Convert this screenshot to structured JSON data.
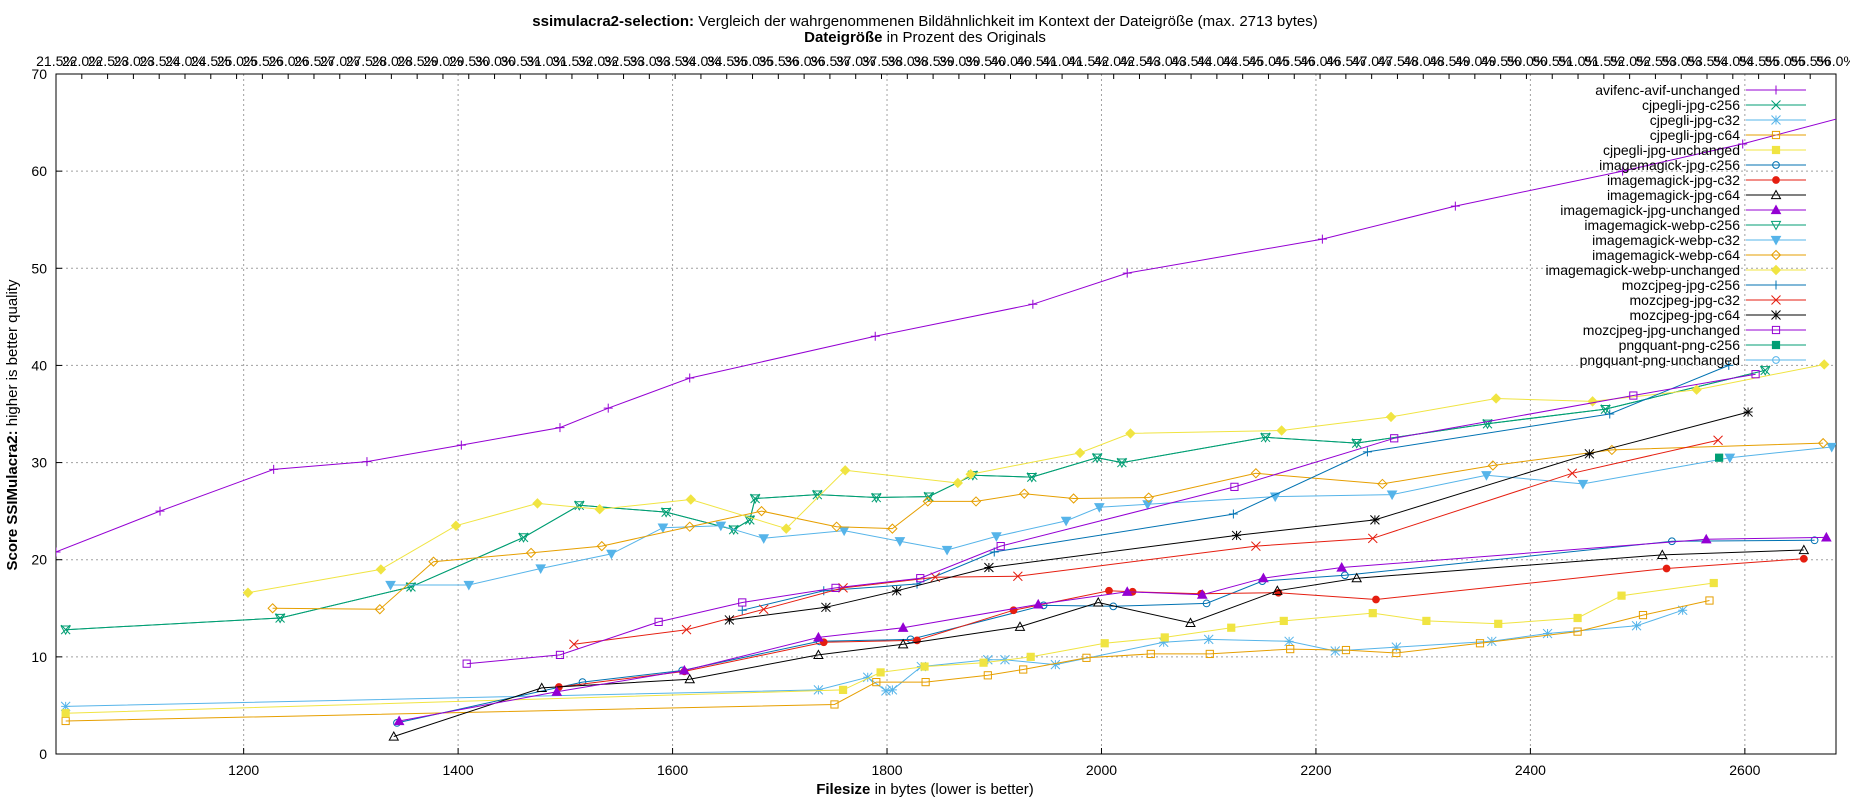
{
  "chart_data": {
    "type": "line",
    "title_bold": "ssimulacra2-selection:",
    "title_rest": " Vergleich der wahrgenommenen Bildähnlichkeit im Kontext der Dateigröße (max. 2713 bytes)",
    "subtitle_bold": "Dateigröße",
    "subtitle_rest": " in Prozent des Originals",
    "xlabel_bold": "Filesize",
    "xlabel_rest": " in bytes (lower is better)",
    "ylabel_bold": "Score SSIMulacra2:",
    "ylabel_rest": " higher is better quality",
    "xlim": [
      1025,
      2685
    ],
    "ylim": [
      0,
      70
    ],
    "xticks": [
      1200,
      1400,
      1600,
      1800,
      2000,
      2200,
      2400,
      2600
    ],
    "yticks": [
      0,
      10,
      20,
      30,
      40,
      50,
      60,
      70
    ],
    "x2ticks": [
      "21.5%",
      "22.0%",
      "22.5%",
      "23.0%",
      "23.5%",
      "24.0%",
      "24.5%",
      "25.0%",
      "25.5%",
      "26.0%",
      "26.5%",
      "27.0%",
      "27.5%",
      "28.0%",
      "28.5%",
      "29.0%",
      "29.5%",
      "30.0%",
      "30.5%",
      "31.0%",
      "31.5%",
      "32.0%",
      "32.5%",
      "33.0%",
      "33.5%",
      "34.0%",
      "34.5%",
      "35.0%",
      "35.5%",
      "36.0%",
      "36.5%",
      "37.0%",
      "37.5%",
      "38.0%",
      "38.5%",
      "39.0%",
      "39.5%",
      "40.0%",
      "40.5%",
      "41.0%",
      "41.5%",
      "42.0%",
      "42.5%",
      "43.0%",
      "43.5%",
      "44.0%",
      "44.5%",
      "45.0%",
      "45.5%",
      "46.0%",
      "46.5%",
      "47.0%",
      "47.5%",
      "48.0%",
      "48.5%",
      "49.0%",
      "49.5%",
      "50.0%",
      "50.5%",
      "51.0%",
      "51.5%",
      "52.0%",
      "52.5%",
      "53.0%",
      "53.5%",
      "54.0%",
      "54.5%",
      "55.0%",
      "55.5%",
      "56.0%"
    ],
    "grid": true,
    "legend_position": "top-right",
    "series": [
      {
        "name": "avifenc-avif-unchanged",
        "color": "#9400d3",
        "marker": "plus",
        "points": [
          [
            1025,
            20.8
          ],
          [
            1122,
            25.0
          ],
          [
            1228,
            29.3
          ],
          [
            1315,
            30.1
          ],
          [
            1403,
            31.8
          ],
          [
            1495,
            33.6
          ],
          [
            1540,
            35.6
          ],
          [
            1616,
            38.7
          ],
          [
            1789,
            43.0
          ],
          [
            1936,
            46.3
          ],
          [
            2024,
            49.5
          ],
          [
            2206,
            53.0
          ],
          [
            2330,
            56.4
          ],
          [
            2486,
            60.0
          ],
          [
            2598,
            62.8
          ],
          [
            2700,
            65.8
          ]
        ]
      },
      {
        "name": "cjpegli-jpg-c256",
        "color": "#009e73",
        "marker": "x",
        "points": [
          [
            1034,
            12.8
          ],
          [
            1234,
            14.0
          ],
          [
            1356,
            17.2
          ],
          [
            1461,
            22.3
          ],
          [
            1513,
            25.6
          ],
          [
            1594,
            24.9
          ],
          [
            1657,
            23.1
          ],
          [
            1672,
            24.1
          ],
          [
            1677,
            26.3
          ],
          [
            1735,
            26.7
          ],
          [
            1790,
            26.4
          ],
          [
            1839,
            26.5
          ],
          [
            1880,
            28.7
          ],
          [
            1935,
            28.5
          ],
          [
            1996,
            30.5
          ],
          [
            2019,
            30.0
          ],
          [
            2153,
            32.6
          ],
          [
            2238,
            32.0
          ],
          [
            2360,
            34.0
          ],
          [
            2470,
            35.5
          ],
          [
            2619,
            39.5
          ]
        ]
      },
      {
        "name": "cjpegli-jpg-c32",
        "color": "#56b4e9",
        "marker": "star",
        "points": [
          [
            1034,
            4.9
          ],
          [
            1736,
            6.6
          ],
          [
            1782,
            7.9
          ],
          [
            1799,
            6.5
          ],
          [
            1805,
            6.6
          ],
          [
            1832,
            9.0
          ],
          [
            1894,
            9.7
          ],
          [
            1910,
            9.7
          ],
          [
            1957,
            9.2
          ],
          [
            2058,
            11.5
          ],
          [
            2100,
            11.8
          ],
          [
            2175,
            11.6
          ],
          [
            2218,
            10.6
          ],
          [
            2275,
            11.0
          ],
          [
            2364,
            11.6
          ],
          [
            2416,
            12.4
          ],
          [
            2499,
            13.2
          ],
          [
            2542,
            14.8
          ]
        ]
      },
      {
        "name": "cjpegli-jpg-c64",
        "color": "#e69f00",
        "marker": "square",
        "points": [
          [
            1034,
            3.4
          ],
          [
            1751,
            5.1
          ],
          [
            1790,
            7.4
          ],
          [
            1836,
            7.4
          ],
          [
            1894,
            8.1
          ],
          [
            1927,
            8.7
          ],
          [
            1986,
            9.9
          ],
          [
            2046,
            10.3
          ],
          [
            2101,
            10.3
          ],
          [
            2176,
            10.8
          ],
          [
            2228,
            10.7
          ],
          [
            2275,
            10.4
          ],
          [
            2353,
            11.4
          ],
          [
            2444,
            12.6
          ],
          [
            2505,
            14.3
          ],
          [
            2567,
            15.8
          ]
        ]
      },
      {
        "name": "cjpegli-jpg-unchanged",
        "color": "#f0e442",
        "marker": "fsquare",
        "points": [
          [
            1034,
            4.2
          ],
          [
            1759,
            6.6
          ],
          [
            1794,
            8.4
          ],
          [
            1835,
            9.0
          ],
          [
            1890,
            9.4
          ],
          [
            1934,
            10.0
          ],
          [
            2003,
            11.4
          ],
          [
            2059,
            12.0
          ],
          [
            2121,
            13.0
          ],
          [
            2170,
            13.7
          ],
          [
            2253,
            14.5
          ],
          [
            2303,
            13.7
          ],
          [
            2370,
            13.4
          ],
          [
            2444,
            14.0
          ],
          [
            2485,
            16.3
          ],
          [
            2571,
            17.6
          ]
        ]
      },
      {
        "name": "imagemagick-jpg-c256",
        "color": "#0072b2",
        "marker": "circle",
        "points": [
          [
            1343,
            3.2
          ],
          [
            1516,
            7.4
          ],
          [
            1609,
            8.6
          ],
          [
            1737,
            11.6
          ],
          [
            1822,
            11.8
          ],
          [
            1946,
            15.3
          ],
          [
            2011,
            15.2
          ],
          [
            2098,
            15.5
          ],
          [
            2150,
            17.8
          ],
          [
            2227,
            18.4
          ],
          [
            2532,
            21.9
          ],
          [
            2665,
            22.0
          ]
        ]
      },
      {
        "name": "imagemagick-jpg-c32",
        "color": "#e51e10",
        "marker": "fcircle",
        "points": [
          [
            1494,
            6.9
          ],
          [
            1611,
            8.5
          ],
          [
            1741,
            11.5
          ],
          [
            1828,
            11.7
          ],
          [
            1918,
            14.8
          ],
          [
            2007,
            16.8
          ],
          [
            2029,
            16.7
          ],
          [
            2093,
            16.5
          ],
          [
            2165,
            16.6
          ],
          [
            2256,
            15.9
          ],
          [
            2527,
            19.1
          ],
          [
            2655,
            20.1
          ]
        ]
      },
      {
        "name": "imagemagick-jpg-c64",
        "color": "#000000",
        "marker": "triangle",
        "points": [
          [
            1340,
            1.8
          ],
          [
            1478,
            6.8
          ],
          [
            1616,
            7.7
          ],
          [
            1736,
            10.2
          ],
          [
            1815,
            11.3
          ],
          [
            1924,
            13.1
          ],
          [
            1997,
            15.6
          ],
          [
            2083,
            13.5
          ],
          [
            2164,
            16.8
          ],
          [
            2238,
            18.1
          ],
          [
            2523,
            20.5
          ],
          [
            2655,
            21.0
          ]
        ]
      },
      {
        "name": "imagemagick-jpg-unchanged",
        "color": "#9400d3",
        "marker": "ftriangle",
        "points": [
          [
            1345,
            3.4
          ],
          [
            1492,
            6.4
          ],
          [
            1611,
            8.6
          ],
          [
            1736,
            12.0
          ],
          [
            1815,
            13.0
          ],
          [
            1941,
            15.4
          ],
          [
            2024,
            16.7
          ],
          [
            2094,
            16.4
          ],
          [
            2151,
            18.1
          ],
          [
            2224,
            19.2
          ],
          [
            2564,
            22.1
          ],
          [
            2676,
            22.3
          ]
        ]
      },
      {
        "name": "imagemagick-webp-c256",
        "color": "#009e73",
        "marker": "tridown",
        "points": [
          [
            1034,
            12.8
          ],
          [
            1234,
            14.0
          ],
          [
            1356,
            17.2
          ],
          [
            1461,
            22.3
          ],
          [
            1513,
            25.6
          ],
          [
            1594,
            24.9
          ],
          [
            1657,
            23.1
          ],
          [
            1672,
            24.1
          ],
          [
            1677,
            26.3
          ],
          [
            1735,
            26.7
          ],
          [
            1790,
            26.4
          ],
          [
            1839,
            26.5
          ],
          [
            1880,
            28.7
          ],
          [
            1935,
            28.5
          ],
          [
            1996,
            30.5
          ],
          [
            2019,
            30.0
          ],
          [
            2153,
            32.6
          ],
          [
            2238,
            32.0
          ],
          [
            2360,
            34.0
          ],
          [
            2470,
            35.5
          ],
          [
            2619,
            39.5
          ]
        ]
      },
      {
        "name": "imagemagick-webp-c32",
        "color": "#56b4e9",
        "marker": "ftridown",
        "points": [
          [
            1337,
            17.4
          ],
          [
            1410,
            17.4
          ],
          [
            1477,
            19.1
          ],
          [
            1543,
            20.6
          ],
          [
            1591,
            23.3
          ],
          [
            1645,
            23.5
          ],
          [
            1685,
            22.2
          ],
          [
            1760,
            23.0
          ],
          [
            1812,
            21.9
          ],
          [
            1856,
            21.0
          ],
          [
            1902,
            22.4
          ],
          [
            1967,
            24.0
          ],
          [
            1998,
            25.4
          ],
          [
            2043,
            25.7
          ],
          [
            2162,
            26.5
          ],
          [
            2271,
            26.7
          ],
          [
            2359,
            28.7
          ],
          [
            2449,
            27.8
          ],
          [
            2586,
            30.5
          ],
          [
            2681,
            31.6
          ]
        ]
      },
      {
        "name": "imagemagick-webp-c64",
        "color": "#e69f00",
        "marker": "diamond",
        "points": [
          [
            1227,
            15.0
          ],
          [
            1327,
            14.9
          ],
          [
            1377,
            19.8
          ],
          [
            1468,
            20.7
          ],
          [
            1534,
            21.4
          ],
          [
            1616,
            23.4
          ],
          [
            1683,
            25.0
          ],
          [
            1753,
            23.4
          ],
          [
            1805,
            23.2
          ],
          [
            1838,
            26.0
          ],
          [
            1883,
            26.0
          ],
          [
            1928,
            26.8
          ],
          [
            1974,
            26.3
          ],
          [
            2044,
            26.4
          ],
          [
            2144,
            28.9
          ],
          [
            2262,
            27.8
          ],
          [
            2365,
            29.7
          ],
          [
            2476,
            31.3
          ],
          [
            2673,
            32.0
          ]
        ]
      },
      {
        "name": "imagemagick-webp-unchanged",
        "color": "#f0e442",
        "marker": "fdiamond",
        "points": [
          [
            1204,
            16.6
          ],
          [
            1328,
            19.0
          ],
          [
            1398,
            23.5
          ],
          [
            1474,
            25.8
          ],
          [
            1532,
            25.2
          ],
          [
            1617,
            26.2
          ],
          [
            1706,
            23.2
          ],
          [
            1761,
            29.2
          ],
          [
            1866,
            27.9
          ],
          [
            1878,
            28.8
          ],
          [
            1980,
            31.0
          ],
          [
            2027,
            33.0
          ],
          [
            2168,
            33.3
          ],
          [
            2270,
            34.7
          ],
          [
            2368,
            36.6
          ],
          [
            2458,
            36.3
          ],
          [
            2555,
            37.5
          ],
          [
            2674,
            40.1
          ]
        ]
      },
      {
        "name": "mozcjpeg-jpg-c256",
        "color": "#0072b2",
        "marker": "plus",
        "points": [
          [
            1665,
            14.8
          ],
          [
            1741,
            16.8
          ],
          [
            1828,
            17.5
          ],
          [
            1900,
            20.8
          ],
          [
            2123,
            24.7
          ],
          [
            2248,
            31.1
          ],
          [
            2474,
            35.0
          ],
          [
            2585,
            40.0
          ]
        ]
      },
      {
        "name": "mozcjpeg-jpg-c32",
        "color": "#e51e10",
        "marker": "x",
        "points": [
          [
            1508,
            11.3
          ],
          [
            1613,
            12.8
          ],
          [
            1685,
            14.9
          ],
          [
            1759,
            17.1
          ],
          [
            1845,
            18.2
          ],
          [
            1922,
            18.3
          ],
          [
            2144,
            21.4
          ],
          [
            2253,
            22.2
          ],
          [
            2439,
            28.9
          ],
          [
            2575,
            32.3
          ]
        ]
      },
      {
        "name": "mozcjpeg-jpg-c64",
        "color": "#000000",
        "marker": "star",
        "points": [
          [
            1653,
            13.8
          ],
          [
            1743,
            15.1
          ],
          [
            1809,
            16.8
          ],
          [
            1895,
            19.2
          ],
          [
            2126,
            22.5
          ],
          [
            2255,
            24.1
          ],
          [
            2455,
            30.9
          ],
          [
            2603,
            35.2
          ]
        ]
      },
      {
        "name": "mozcjpeg-jpg-unchanged",
        "color": "#9400d3",
        "marker": "square",
        "points": [
          [
            1408,
            9.3
          ],
          [
            1495,
            10.2
          ],
          [
            1587,
            13.6
          ],
          [
            1665,
            15.6
          ],
          [
            1752,
            17.1
          ],
          [
            1831,
            18.1
          ],
          [
            1906,
            21.4
          ],
          [
            2124,
            27.5
          ],
          [
            2273,
            32.5
          ],
          [
            2496,
            36.9
          ],
          [
            2610,
            39.1
          ]
        ]
      },
      {
        "name": "pngquant-png-c256",
        "color": "#009e73",
        "marker": "fsquare",
        "points": [
          [
            2576,
            30.5
          ]
        ]
      },
      {
        "name": "pngquant-png-unchanged",
        "color": "#56b4e9",
        "marker": "circle",
        "points": []
      }
    ]
  }
}
